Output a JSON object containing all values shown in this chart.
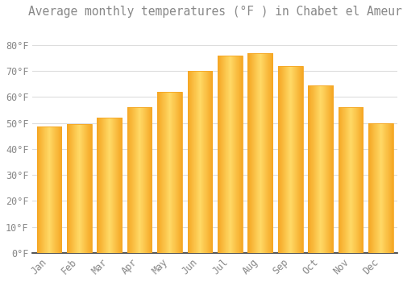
{
  "title": "Average monthly temperatures (°F ) in Chabet el Ameur",
  "months": [
    "Jan",
    "Feb",
    "Mar",
    "Apr",
    "May",
    "Jun",
    "Jul",
    "Aug",
    "Sep",
    "Oct",
    "Nov",
    "Dec"
  ],
  "values": [
    48.5,
    49.5,
    52,
    56,
    62,
    70,
    76,
    77,
    72,
    64.5,
    56,
    50
  ],
  "bar_color_center": "#FFD966",
  "bar_color_edge": "#F5A623",
  "background_color": "#FFFFFF",
  "plot_bg_color": "#FFFFFF",
  "grid_color": "#DDDDDD",
  "text_color": "#888888",
  "axis_color": "#333333",
  "ylim": [
    0,
    88
  ],
  "yticks": [
    0,
    10,
    20,
    30,
    40,
    50,
    60,
    70,
    80
  ],
  "ylabel_suffix": "°F",
  "title_fontsize": 10.5,
  "tick_fontsize": 8.5,
  "bar_width": 0.82
}
